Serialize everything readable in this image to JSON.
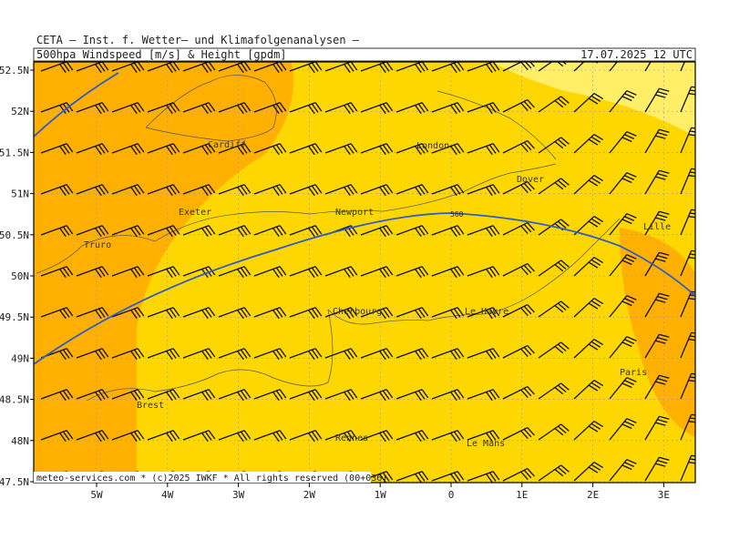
{
  "header": {
    "title": "CETA – Inst. f. Wetter– und Klimafolgenanalysen –",
    "product": "500hpa_Windspeed_[m/s]_&_Height_[gpdm]",
    "valid": "17.07.2025 12 UTC"
  },
  "lat_labels": [
    "52.5N",
    "52N",
    "51.5N",
    "51N",
    "50.5N",
    "50N",
    "49.5N",
    "49N",
    "48.5N",
    "48N",
    "47.5N"
  ],
  "lon_labels": [
    "5W",
    "4W",
    "3W",
    "2W",
    "1W",
    "0",
    "1E",
    "2E",
    "3E"
  ],
  "places": [
    "Cardiff",
    "London",
    "Dover",
    "Exeter",
    "Newport",
    "Lille",
    "Truro",
    "Cherbourg",
    "Le Havre",
    "Paris",
    "Brest",
    "Rennes",
    "Le Mans"
  ],
  "contour_label": "560",
  "footer": "meteo-services.com * (c)2025 IWKF * All rights reserved (00+036)"
}
